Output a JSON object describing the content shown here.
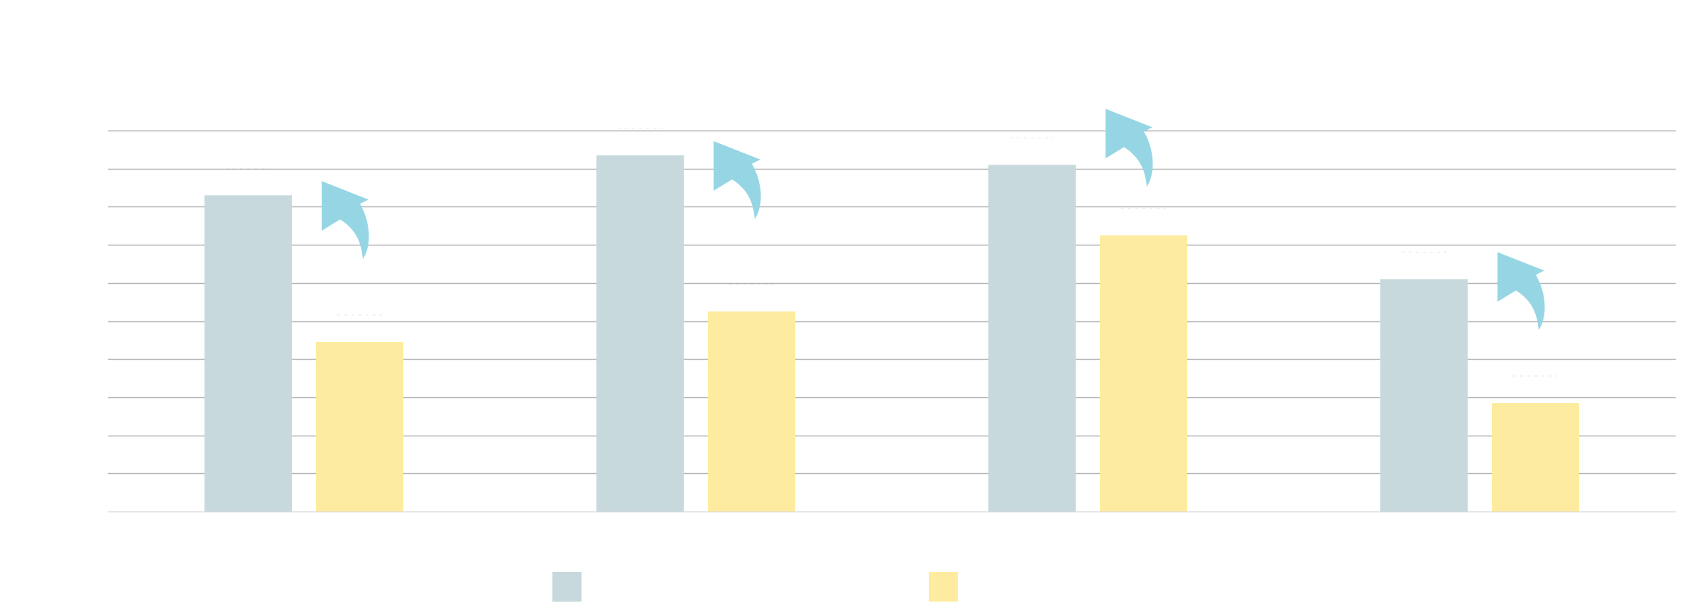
{
  "chart_data": {
    "type": "bar",
    "title": "",
    "xlabel": "",
    "ylabel": "",
    "categories": [
      "",
      "",
      "",
      ""
    ],
    "series": [
      {
        "values": [
          83,
          93.5,
          91,
          61
        ]
      },
      {
        "values": [
          44.5,
          52.5,
          72.5,
          28.5
        ]
      }
    ],
    "ylim": [
      0,
      100
    ],
    "gridline_step": 10,
    "grid": true,
    "legend": "bottom-center",
    "colors": {
      "series_1": "#c7d9dd",
      "series_2": "#fdeca0",
      "arrow": "#96d6e4",
      "gridline": "#b3b3b3",
      "baseline": "#d9d9d9"
    },
    "annotations": {
      "arrow_icon": "curved-up-arrow-icon",
      "count": 4
    }
  }
}
